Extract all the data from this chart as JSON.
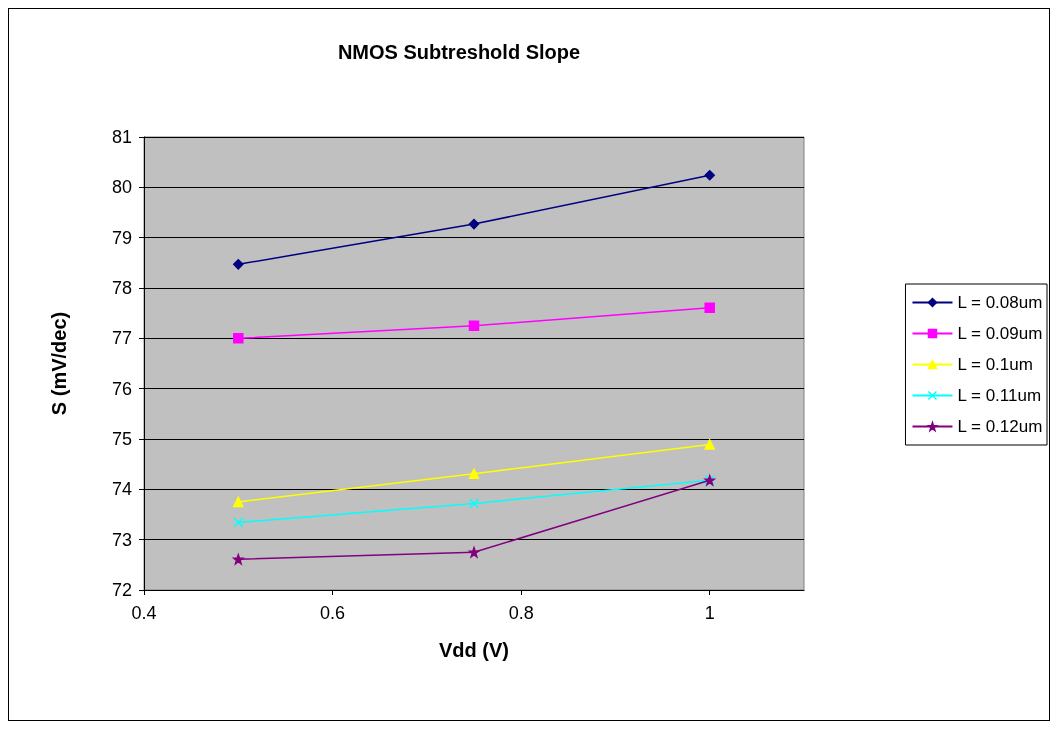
{
  "chart_data": {
    "type": "line",
    "title": "NMOS Subtreshold Slope",
    "xlabel": "Vdd (V)",
    "ylabel": "S (mV/dec)",
    "x": [
      0.5,
      0.75,
      1
    ],
    "xlim": [
      0.4,
      1.1
    ],
    "xticks": [
      0.4,
      0.6,
      0.8,
      1
    ],
    "ylim": [
      72,
      81
    ],
    "yticks": [
      72,
      73,
      74,
      75,
      76,
      77,
      78,
      79,
      80,
      81
    ],
    "grid": "y",
    "legend": "right",
    "series": [
      {
        "name": "L = 0.08um",
        "color": "#000080",
        "marker": "diamond",
        "values": [
          78.47,
          79.27,
          80.24
        ]
      },
      {
        "name": "L = 0.09um",
        "color": "#ff00ff",
        "marker": "square",
        "values": [
          77.0,
          77.25,
          77.61
        ]
      },
      {
        "name": "L = 0.1um",
        "color": "#ffff00",
        "marker": "triangle",
        "values": [
          73.75,
          74.31,
          74.89
        ]
      },
      {
        "name": "L = 0.11um",
        "color": "#00ffff",
        "marker": "cross",
        "values": [
          73.34,
          73.72,
          74.18
        ]
      },
      {
        "name": "L = 0.12um",
        "color": "#800080",
        "marker": "star",
        "values": [
          72.61,
          72.75,
          74.18
        ]
      }
    ]
  }
}
